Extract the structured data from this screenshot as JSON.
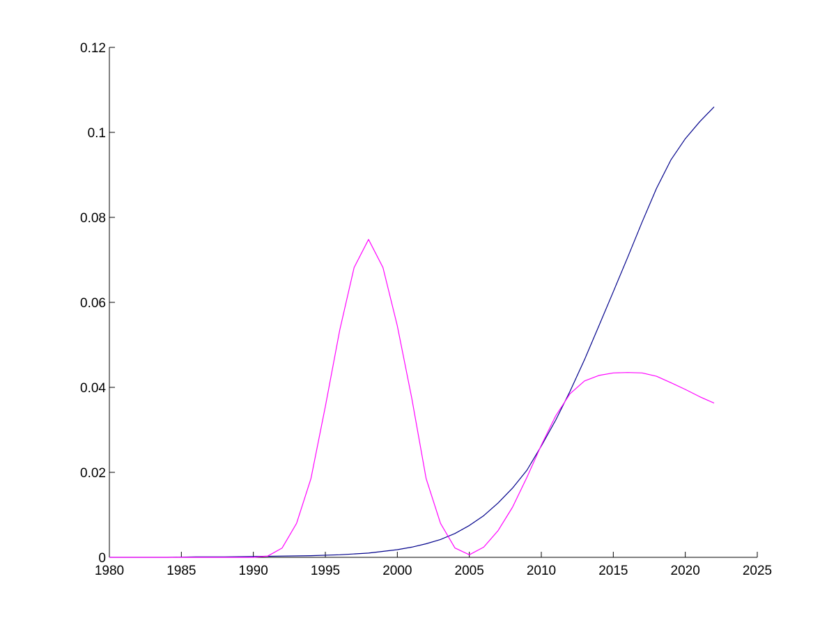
{
  "chart_data": {
    "type": "line",
    "title": "",
    "xlabel": "",
    "ylabel": "",
    "xlim": [
      1980,
      2025
    ],
    "ylim": [
      0,
      0.12
    ],
    "xticks": [
      1980,
      1985,
      1990,
      1995,
      2000,
      2005,
      2010,
      2015,
      2020,
      2025
    ],
    "xtick_labels": [
      "1980",
      "1985",
      "1990",
      "1995",
      "2000",
      "2005",
      "2010",
      "2015",
      "2020",
      "2025"
    ],
    "yticks": [
      0,
      0.02,
      0.04,
      0.06,
      0.08,
      0.1,
      0.12
    ],
    "ytick_labels": [
      "0",
      "0.02",
      "0.04",
      "0.06",
      "0.08",
      "0.1",
      "0.12"
    ],
    "grid": false,
    "legend": "none",
    "series": [
      {
        "color": "#00008b",
        "x": [
          1980,
          1982,
          1984,
          1986,
          1988,
          1990,
          1992,
          1994,
          1996,
          1998,
          2000,
          2001,
          2002,
          2003,
          2004,
          2005,
          2006,
          2007,
          2008,
          2009,
          2010,
          2011,
          2012,
          2013,
          2014,
          2015,
          2016,
          2017,
          2018,
          2019,
          2020,
          2021,
          2022
        ],
        "y": [
          0,
          0,
          0,
          0.0001,
          0.0001,
          0.0002,
          0.0003,
          0.0004,
          0.0006,
          0.001,
          0.0018,
          0.0024,
          0.0032,
          0.0042,
          0.0056,
          0.0075,
          0.0098,
          0.0128,
          0.0163,
          0.0205,
          0.0262,
          0.0323,
          0.0391,
          0.0465,
          0.0545,
          0.0625,
          0.0706,
          0.0789,
          0.0868,
          0.0935,
          0.0985,
          0.1025,
          0.106
        ]
      },
      {
        "color": "#ff00ff",
        "x": [
          1980,
          1986,
          1990,
          1991,
          1992,
          1993,
          1994,
          1995,
          1996,
          1997,
          1998,
          1999,
          2000,
          2001,
          2002,
          2003,
          2004,
          2005,
          2006,
          2007,
          2008,
          2009,
          2010,
          2011,
          2012,
          2013,
          2014,
          2015,
          2016,
          2017,
          2018,
          2019,
          2020,
          2021,
          2022
        ],
        "y": [
          0,
          0,
          0,
          0.0003,
          0.0022,
          0.008,
          0.0185,
          0.0355,
          0.0535,
          0.0682,
          0.0748,
          0.0682,
          0.0545,
          0.0375,
          0.0185,
          0.008,
          0.0022,
          0.0006,
          0.0024,
          0.0063,
          0.0118,
          0.0188,
          0.0264,
          0.0333,
          0.0385,
          0.0415,
          0.0428,
          0.0434,
          0.0435,
          0.0434,
          0.0426,
          0.0411,
          0.0395,
          0.0378,
          0.0363
        ]
      }
    ]
  }
}
